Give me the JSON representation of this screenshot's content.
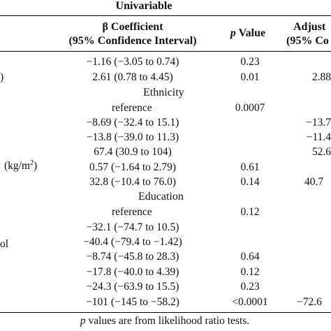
{
  "header": {
    "group_title": "Univariable",
    "col1_line1": "β Coefficient",
    "col1_line2": "(95% Confidence Interval)",
    "col2_p": "p",
    "col2_rest": " Value",
    "col3_line1": "Adjust",
    "col3_line2": "(95% Co"
  },
  "row_labels": {
    "r2": ")",
    "r11": "(kg/m",
    "r11_sup": "2",
    "r11_end": ")",
    "r16": "ol"
  },
  "sections": {
    "ethnicity": "Ethnicity",
    "education": "Education"
  },
  "rows": [
    {
      "ci": "−1.16 (−3.05 to 0.74)",
      "p": "0.23",
      "adj": ""
    },
    {
      "ci": "2.61 (0.78 to 4.45)",
      "p": "0.01",
      "adj": "2.88"
    },
    {
      "ci": "reference",
      "p": "0.0007",
      "adj": ""
    },
    {
      "ci": "−8.69 (−32.4 to 15.1)",
      "p": "",
      "adj": "−13.7"
    },
    {
      "ci": "−13.8 (−39.0 to 11.3)",
      "p": "",
      "adj": "−11.4"
    },
    {
      "ci": "67.4 (30.9 to 104)",
      "p": "",
      "adj": "52.6"
    },
    {
      "ci": "0.57 (−1.64 to 2.79)",
      "p": "0.61",
      "adj": ""
    },
    {
      "ci": "32.8 (−10.4 to 76.0)",
      "p": "0.14",
      "adj": "40.7"
    },
    {
      "ci": "reference",
      "p": "0.12",
      "adj": ""
    },
    {
      "ci": "−32.1 (−74.7 to 10.5)",
      "p": "",
      "adj": ""
    },
    {
      "ci": "−40.4 (−79.4 to −1.42)",
      "p": "",
      "adj": ""
    },
    {
      "ci": "−8.74 (−45.8 to 28.3)",
      "p": "0.64",
      "adj": ""
    },
    {
      "ci": "−17.8 (−40.0 to 4.39)",
      "p": "0.12",
      "adj": ""
    },
    {
      "ci": "−24.3 (−63.9 to 15.5)",
      "p": "0.23",
      "adj": ""
    },
    {
      "ci": "−101 (−145 to −58.2)",
      "p": "<0.0001",
      "adj": "−72.6"
    }
  ],
  "footnote_p": "p",
  "footnote_rest": " values are from likelihood ratio tests."
}
